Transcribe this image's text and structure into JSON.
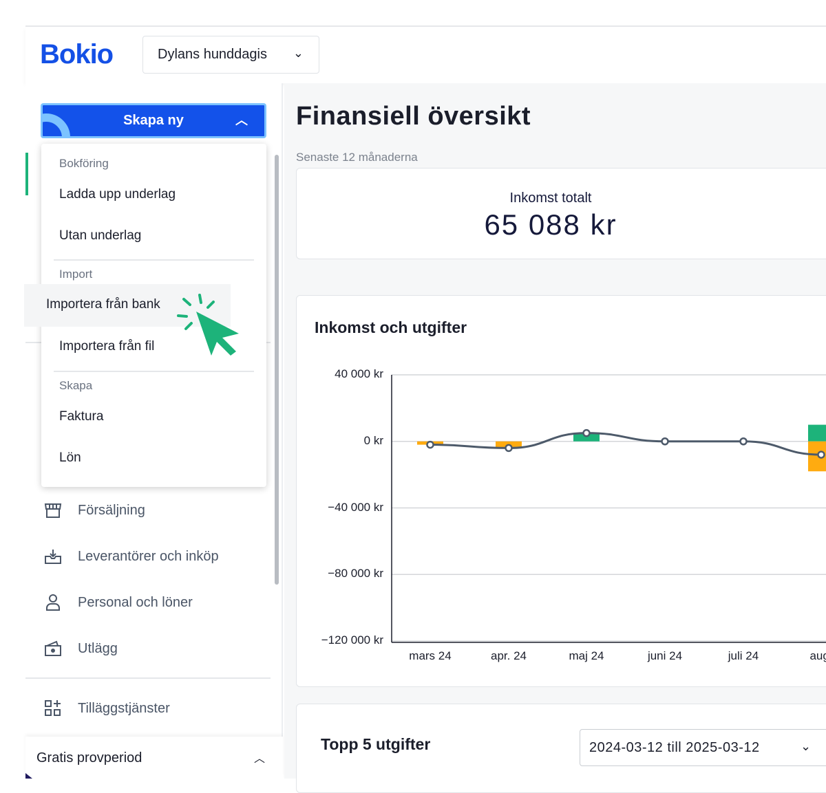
{
  "header": {
    "logo": "Bokio",
    "company": "Dylans hunddagis"
  },
  "create_button": {
    "label": "Skapa ny"
  },
  "create_menu": {
    "sections": [
      {
        "title": "Bokföring",
        "items": [
          "Ladda upp underlag",
          "Utan underlag"
        ]
      },
      {
        "title": "Import",
        "items": [
          "Importera från bank",
          "Importera från fil"
        ]
      },
      {
        "title": "Skapa",
        "items": [
          "Faktura",
          "Lön"
        ]
      }
    ],
    "highlighted": "Importera från bank"
  },
  "sidebar": {
    "items": [
      {
        "label": "Försäljning",
        "icon": "store-icon"
      },
      {
        "label": "Leverantörer och inköp",
        "icon": "inbox-icon"
      },
      {
        "label": "Personal och löner",
        "icon": "person-icon"
      },
      {
        "label": "Utlägg",
        "icon": "wallet-icon"
      },
      {
        "label": "Tilläggstjänster",
        "icon": "add-apps-icon"
      }
    ],
    "trial": "Gratis provperiod"
  },
  "main": {
    "title": "Finansiell översikt",
    "period": "Senaste 12 månaderna",
    "income_label": "Inkomst totalt",
    "income_value": "65 088 kr",
    "chart_title": "Inkomst och utgifter",
    "top5_title": "Topp 5 utgifter",
    "date_range": "2024-03-12 till 2025-03-12"
  },
  "colors": {
    "brand": "#1450e6",
    "income": "#1db37a",
    "expense": "#ffab10",
    "net": "#4d5a6a"
  },
  "chart_data": {
    "type": "bar",
    "title": "Inkomst och utgifter",
    "categories": [
      "mars 24",
      "apr. 24",
      "maj 24",
      "juni 24",
      "juli 24",
      "aug."
    ],
    "y_ticks": [
      "40 000 kr",
      "0 kr",
      "−40 000 kr",
      "−80 000 kr",
      "−120 000 kr"
    ],
    "ylim": [
      -120000,
      40000
    ],
    "grid": true,
    "series": [
      {
        "type": "bar",
        "values": [
          0,
          0,
          5000,
          0,
          0,
          10000
        ]
      },
      {
        "type": "bar",
        "values": [
          -2000,
          -4000,
          0,
          0,
          0,
          -18000
        ]
      },
      {
        "type": "line",
        "values": [
          -2000,
          -4000,
          5000,
          0,
          0,
          -8000
        ]
      }
    ]
  }
}
